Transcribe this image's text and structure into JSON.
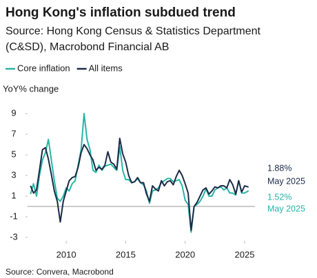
{
  "chart_data": {
    "type": "line",
    "title": "Hong Kong's inflation subdued trend",
    "subtitle": [
      "Source: Hong Kong Census & Statistics Department",
      "(C&SD), Macrobond Financial AB"
    ],
    "y_label": "YoY% change",
    "source": "Source: Convera, Macrobond",
    "x": [
      2007,
      2007.25,
      2007.5,
      2007.75,
      2008,
      2008.25,
      2008.5,
      2008.75,
      2009,
      2009.25,
      2009.5,
      2009.75,
      2010,
      2010.25,
      2010.5,
      2010.75,
      2011,
      2011.25,
      2011.5,
      2011.75,
      2012,
      2012.25,
      2012.5,
      2012.75,
      2013,
      2013.25,
      2013.5,
      2013.75,
      2014,
      2014.25,
      2014.5,
      2014.75,
      2015,
      2015.25,
      2015.5,
      2015.75,
      2016,
      2016.25,
      2016.5,
      2016.75,
      2017,
      2017.25,
      2017.5,
      2017.75,
      2018,
      2018.25,
      2018.5,
      2018.75,
      2019,
      2019.25,
      2019.5,
      2019.75,
      2020,
      2020.25,
      2020.5,
      2020.75,
      2021,
      2021.25,
      2021.5,
      2021.75,
      2022,
      2022.25,
      2022.5,
      2022.75,
      2023,
      2023.25,
      2023.5,
      2023.75,
      2024,
      2024.25,
      2024.5,
      2024.75,
      2025,
      2025.33
    ],
    "series": [
      {
        "name": "Core inflation",
        "color": "#26b5a6",
        "values": [
          1.2,
          2.2,
          1.0,
          3.0,
          4.5,
          5.2,
          6.5,
          4.5,
          2.5,
          0.8,
          0.5,
          1.0,
          1.8,
          1.5,
          2.2,
          2.5,
          4.0,
          5.5,
          9.0,
          6.5,
          5.5,
          3.5,
          3.3,
          4.0,
          3.5,
          3.9,
          4.0,
          4.1,
          3.8,
          3.5,
          5.8,
          3.5,
          2.6,
          2.6,
          2.3,
          2.4,
          2.7,
          2.3,
          2.1,
          1.5,
          0.3,
          1.5,
          1.6,
          1.8,
          2.3,
          2.5,
          2.7,
          2.7,
          2.4,
          2.5,
          2.6,
          2.0,
          0.6,
          0.2,
          -2.5,
          0.0,
          0.2,
          0.5,
          1.0,
          1.7,
          1.0,
          1.0,
          1.6,
          1.8,
          1.9,
          1.6,
          1.8,
          1.3,
          1.3,
          1.1,
          2.5,
          1.3,
          1.3,
          1.52
        ]
      },
      {
        "name": "All items",
        "color": "#1b2a47",
        "values": [
          2.0,
          1.3,
          1.6,
          3.5,
          5.5,
          5.7,
          4.6,
          3.1,
          1.5,
          0.5,
          -1.5,
          0.5,
          1.5,
          2.5,
          2.8,
          2.9,
          3.8,
          5.2,
          6.0,
          5.6,
          5.0,
          4.5,
          3.5,
          3.8,
          3.6,
          4.0,
          5.3,
          4.3,
          4.1,
          3.6,
          6.6,
          5.1,
          4.3,
          3.0,
          2.3,
          2.4,
          2.8,
          2.3,
          2.3,
          1.2,
          0.5,
          2.0,
          1.7,
          1.5,
          2.5,
          2.0,
          2.4,
          2.5,
          2.1,
          2.9,
          3.5,
          3.0,
          2.2,
          1.3,
          -2.3,
          0.0,
          0.4,
          1.0,
          1.6,
          1.8,
          1.2,
          1.5,
          1.9,
          1.8,
          2.0,
          2.0,
          1.8,
          2.6,
          2.1,
          1.2,
          2.5,
          1.4,
          2.0,
          1.88
        ]
      }
    ],
    "xlim": [
      2006.75,
      2025.87
    ],
    "xticks": [
      2010,
      2015,
      2020,
      2025
    ],
    "ylim": [
      -3.33,
      9.67
    ],
    "yticks": [
      -3,
      -1,
      1,
      3,
      5,
      7,
      9
    ],
    "hline": 0,
    "annotations": [
      {
        "lines": [
          "1.88%",
          "May 2025"
        ],
        "color": "#1b2a47"
      },
      {
        "lines": [
          "1.52%",
          "May 2025"
        ],
        "color": "#26b5a6"
      }
    ]
  }
}
